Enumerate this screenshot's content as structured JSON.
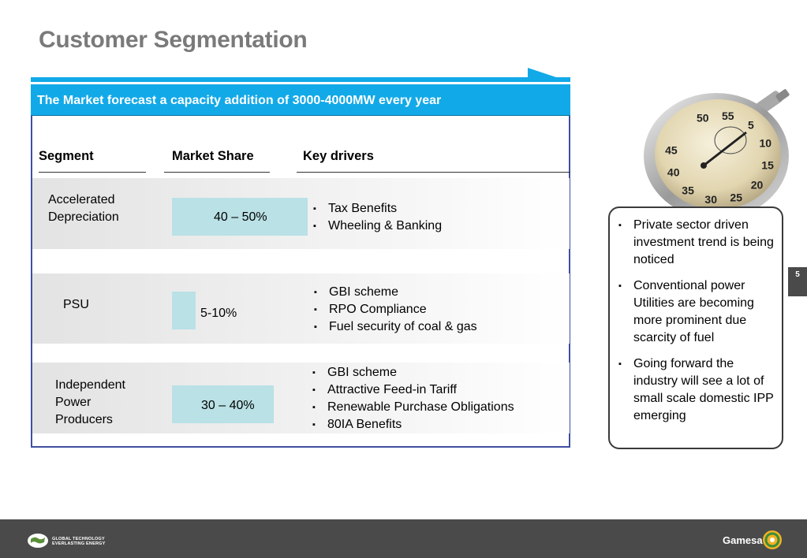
{
  "title": "Customer Segmentation",
  "banner": "The Market forecast a capacity addition of 3000-4000MW every year",
  "columns": {
    "segment": "Segment",
    "market_share": "Market Share",
    "key_drivers": "Key drivers"
  },
  "rows": [
    {
      "segment": [
        "Accelerated",
        "Depreciation"
      ],
      "market_share": "40 – 50%",
      "drivers": [
        "Tax Benefits",
        "Wheeling & Banking"
      ]
    },
    {
      "segment": [
        "PSU"
      ],
      "market_share": "5-10%",
      "drivers": [
        "GBI scheme",
        "RPO Compliance",
        "Fuel security of coal & gas"
      ]
    },
    {
      "segment": [
        "Independent",
        "Power",
        "Producers"
      ],
      "market_share": "30 – 40%",
      "drivers": [
        "GBI scheme",
        "Attractive Feed-in Tariff",
        "Renewable Purchase Obligations",
        "80IA Benefits"
      ]
    }
  ],
  "callout": [
    "Private sector driven investment trend is being noticed",
    "Conventional power Utilities are becoming more prominent due scarcity of fuel",
    "Going forward the industry will see a lot of small scale domestic IPP emerging"
  ],
  "page_number": "5",
  "footer": {
    "tagline_line1": "GLOBAL TECHNOLOGY",
    "tagline_line2": "EVERLASTING ENERGY",
    "brand": "Gamesa"
  },
  "stopwatch_numbers": [
    "50",
    "55",
    "5",
    "10",
    "15",
    "20",
    "25",
    "30",
    "35",
    "40",
    "45"
  ],
  "colors": {
    "banner": "#12a9e8",
    "share_bar": "#b9e1e6",
    "title": "#7a7a7a",
    "panel_border": "#3f4fa0",
    "footer": "#4a4a4a"
  }
}
